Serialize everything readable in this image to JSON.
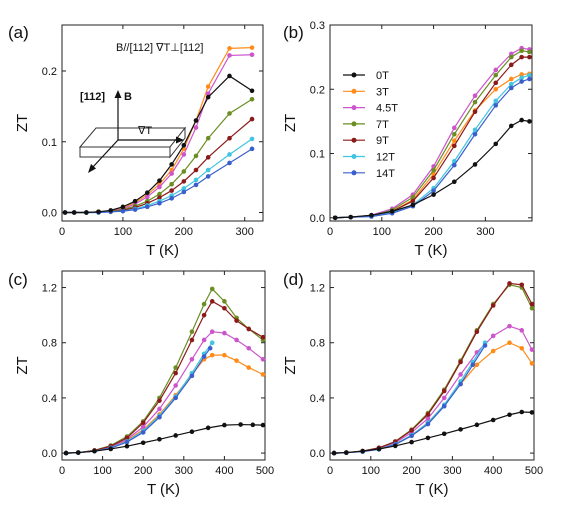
{
  "series_colors": {
    "0T": "#111111",
    "3T": "#ff8c1a",
    "4.5T": "#cc55cc",
    "7T": "#6b8e23",
    "9T": "#8b1a1a",
    "12T": "#40c4e0",
    "14T": "#3a5fcd"
  },
  "legend_order": [
    "0T",
    "3T",
    "4.5T",
    "7T",
    "9T",
    "12T",
    "14T"
  ],
  "chart_data": [
    {
      "panel": "(a)",
      "type": "line",
      "xlabel": "T (K)",
      "ylabel": "ZT",
      "xlim": [
        0,
        330
      ],
      "ylim": [
        -0.012,
        0.265
      ],
      "xticks": [
        0,
        100,
        200,
        300
      ],
      "yticks": [
        0.0,
        0.1,
        0.2
      ],
      "ytick_labels": [
        "0.0",
        "0.1",
        "0.2"
      ],
      "annotations": {
        "header": "B//[112]   ∇T⊥[112]",
        "axis_112": "[112]",
        "axis_B": "B",
        "axis_gradT": "∇T"
      },
      "series": [
        {
          "name": "0T",
          "x": [
            5,
            20,
            40,
            60,
            80,
            100,
            120,
            140,
            160,
            180,
            200,
            220,
            240,
            275,
            312
          ],
          "y": [
            0,
            0,
            0,
            0.001,
            0.003,
            0.008,
            0.016,
            0.028,
            0.045,
            0.068,
            0.095,
            0.13,
            0.163,
            0.193,
            0.172
          ]
        },
        {
          "name": "3T",
          "x": [
            5,
            20,
            40,
            60,
            80,
            100,
            120,
            140,
            160,
            180,
            200,
            220,
            240,
            275,
            312
          ],
          "y": [
            0,
            0,
            0,
            0.001,
            0.002,
            0.006,
            0.014,
            0.025,
            0.04,
            0.06,
            0.09,
            0.13,
            0.178,
            0.232,
            0.233
          ]
        },
        {
          "name": "4.5T",
          "x": [
            5,
            20,
            40,
            60,
            80,
            100,
            120,
            140,
            160,
            180,
            200,
            220,
            240,
            275,
            312
          ],
          "y": [
            0,
            0,
            0,
            0.001,
            0.002,
            0.005,
            0.012,
            0.022,
            0.036,
            0.055,
            0.082,
            0.12,
            0.168,
            0.222,
            0.223
          ]
        },
        {
          "name": "7T",
          "x": [
            5,
            20,
            40,
            60,
            80,
            100,
            120,
            140,
            160,
            180,
            200,
            220,
            240,
            275,
            312
          ],
          "y": [
            0,
            0,
            0,
            0.001,
            0.002,
            0.004,
            0.009,
            0.016,
            0.026,
            0.04,
            0.058,
            0.08,
            0.105,
            0.14,
            0.16
          ]
        },
        {
          "name": "9T",
          "x": [
            5,
            20,
            40,
            60,
            80,
            100,
            120,
            140,
            160,
            180,
            200,
            220,
            240,
            275,
            312
          ],
          "y": [
            0,
            0,
            0,
            0.001,
            0.001,
            0.003,
            0.007,
            0.013,
            0.021,
            0.031,
            0.044,
            0.06,
            0.078,
            0.105,
            0.132
          ]
        },
        {
          "name": "12T",
          "x": [
            5,
            20,
            40,
            60,
            80,
            100,
            120,
            140,
            160,
            180,
            200,
            220,
            240,
            275,
            312
          ],
          "y": [
            0,
            0,
            0,
            0,
            0.001,
            0.002,
            0.005,
            0.01,
            0.016,
            0.024,
            0.034,
            0.046,
            0.06,
            0.082,
            0.104
          ]
        },
        {
          "name": "14T",
          "x": [
            5,
            20,
            40,
            60,
            80,
            100,
            120,
            140,
            160,
            180,
            200,
            220,
            240,
            275,
            312
          ],
          "y": [
            0,
            0,
            0,
            0,
            0.001,
            0.002,
            0.004,
            0.008,
            0.013,
            0.02,
            0.029,
            0.039,
            0.051,
            0.07,
            0.09
          ]
        }
      ]
    },
    {
      "panel": "(b)",
      "type": "line",
      "xlabel": "T (K)",
      "ylabel": "ZT",
      "xlim": [
        0,
        390
      ],
      "ylim": [
        -0.005,
        0.3
      ],
      "xticks": [
        0,
        100,
        200,
        300
      ],
      "yticks": [
        0.0,
        0.1,
        0.2,
        0.3
      ],
      "ytick_labels": [
        "0.0",
        "0.1",
        "0.2",
        "0.3"
      ],
      "show_legend": true,
      "series": [
        {
          "name": "0T",
          "x": [
            10,
            40,
            80,
            120,
            160,
            200,
            240,
            280,
            320,
            350,
            370,
            385
          ],
          "y": [
            0,
            0.001,
            0.004,
            0.01,
            0.02,
            0.036,
            0.056,
            0.083,
            0.115,
            0.143,
            0.152,
            0.15
          ]
        },
        {
          "name": "3T",
          "x": [
            10,
            40,
            80,
            120,
            160,
            200,
            240,
            280,
            320,
            350,
            370,
            385
          ],
          "y": [
            0,
            0.001,
            0.003,
            0.01,
            0.028,
            0.068,
            0.12,
            0.167,
            0.2,
            0.216,
            0.223,
            0.224
          ]
        },
        {
          "name": "4.5T",
          "x": [
            10,
            40,
            80,
            120,
            160,
            200,
            240,
            280,
            320,
            350,
            370,
            385
          ],
          "y": [
            0,
            0.001,
            0.004,
            0.014,
            0.036,
            0.08,
            0.14,
            0.19,
            0.23,
            0.255,
            0.264,
            0.262
          ]
        },
        {
          "name": "7T",
          "x": [
            10,
            40,
            80,
            120,
            160,
            200,
            240,
            280,
            320,
            350,
            370,
            385
          ],
          "y": [
            0,
            0.001,
            0.003,
            0.012,
            0.032,
            0.074,
            0.13,
            0.18,
            0.222,
            0.25,
            0.26,
            0.258
          ]
        },
        {
          "name": "9T",
          "x": [
            10,
            40,
            80,
            120,
            160,
            200,
            240,
            280,
            320,
            350,
            370,
            385
          ],
          "y": [
            0,
            0.001,
            0.003,
            0.01,
            0.026,
            0.062,
            0.112,
            0.165,
            0.21,
            0.238,
            0.25,
            0.25
          ]
        },
        {
          "name": "12T",
          "x": [
            10,
            40,
            80,
            120,
            160,
            200,
            240,
            280,
            320,
            350,
            370,
            385
          ],
          "y": [
            0,
            0.001,
            0.002,
            0.008,
            0.02,
            0.046,
            0.088,
            0.137,
            0.182,
            0.208,
            0.218,
            0.222
          ]
        },
        {
          "name": "14T",
          "x": [
            10,
            40,
            80,
            120,
            160,
            200,
            240,
            280,
            320,
            350,
            370,
            385
          ],
          "y": [
            0,
            0.001,
            0.002,
            0.007,
            0.018,
            0.042,
            0.082,
            0.13,
            0.175,
            0.202,
            0.212,
            0.216
          ]
        }
      ]
    },
    {
      "panel": "(c)",
      "type": "line",
      "xlabel": "T (K)",
      "ylabel": "ZT",
      "xlim": [
        0,
        500
      ],
      "ylim": [
        -0.05,
        1.32
      ],
      "xticks": [
        0,
        100,
        200,
        300,
        400,
        500
      ],
      "yticks": [
        0.0,
        0.4,
        0.8,
        1.2
      ],
      "ytick_labels": [
        "0.0",
        "0.4",
        "0.8",
        "1.2"
      ],
      "series": [
        {
          "name": "0T",
          "x": [
            10,
            40,
            80,
            120,
            160,
            200,
            240,
            280,
            320,
            360,
            400,
            440,
            470,
            495
          ],
          "y": [
            0,
            0.004,
            0.014,
            0.03,
            0.05,
            0.075,
            0.1,
            0.128,
            0.155,
            0.183,
            0.203,
            0.207,
            0.205,
            0.203
          ]
        },
        {
          "name": "3T",
          "x": [
            10,
            40,
            80,
            120,
            160,
            200,
            240,
            280,
            320,
            350,
            370,
            400,
            430,
            460,
            495
          ],
          "y": [
            0,
            0.003,
            0.015,
            0.04,
            0.09,
            0.17,
            0.28,
            0.42,
            0.57,
            0.68,
            0.71,
            0.71,
            0.67,
            0.62,
            0.57
          ]
        },
        {
          "name": "4.5T",
          "x": [
            10,
            40,
            80,
            120,
            160,
            200,
            240,
            280,
            320,
            350,
            370,
            400,
            430,
            460,
            495
          ],
          "y": [
            0,
            0.003,
            0.017,
            0.045,
            0.1,
            0.19,
            0.32,
            0.49,
            0.68,
            0.82,
            0.88,
            0.87,
            0.82,
            0.76,
            0.68
          ]
        },
        {
          "name": "7T",
          "x": [
            10,
            40,
            80,
            120,
            160,
            200,
            240,
            280,
            320,
            350,
            370,
            400,
            430,
            460,
            495
          ],
          "y": [
            0,
            0.003,
            0.02,
            0.055,
            0.12,
            0.23,
            0.4,
            0.62,
            0.88,
            1.08,
            1.19,
            1.1,
            0.98,
            0.9,
            0.82
          ]
        },
        {
          "name": "9T",
          "x": [
            10,
            40,
            80,
            120,
            160,
            200,
            240,
            280,
            320,
            350,
            370,
            400,
            430,
            460,
            495
          ],
          "y": [
            0,
            0.003,
            0.019,
            0.05,
            0.11,
            0.22,
            0.38,
            0.58,
            0.82,
            1.0,
            1.1,
            1.05,
            0.96,
            0.9,
            0.84
          ]
        },
        {
          "name": "12T",
          "x": [
            10,
            40,
            80,
            120,
            160,
            200,
            240,
            280,
            320,
            350,
            370
          ],
          "y": [
            0,
            0.003,
            0.014,
            0.038,
            0.085,
            0.16,
            0.27,
            0.41,
            0.58,
            0.72,
            0.8
          ]
        },
        {
          "name": "14T",
          "x": [
            10,
            40,
            80,
            120,
            160,
            200,
            240,
            280,
            320,
            350,
            365
          ],
          "y": [
            0,
            0.003,
            0.014,
            0.036,
            0.08,
            0.15,
            0.26,
            0.4,
            0.56,
            0.7,
            0.76
          ]
        }
      ]
    },
    {
      "panel": "(d)",
      "type": "line",
      "xlabel": "T (K)",
      "ylabel": "ZT",
      "xlim": [
        0,
        500
      ],
      "ylim": [
        -0.05,
        1.32
      ],
      "xticks": [
        0,
        100,
        200,
        300,
        400,
        500
      ],
      "yticks": [
        0.0,
        0.4,
        0.8,
        1.2
      ],
      "ytick_labels": [
        "0.0",
        "0.4",
        "0.8",
        "1.2"
      ],
      "series": [
        {
          "name": "0T",
          "x": [
            10,
            40,
            80,
            120,
            160,
            200,
            240,
            280,
            320,
            360,
            400,
            440,
            470,
            495
          ],
          "y": [
            0,
            0.004,
            0.014,
            0.03,
            0.052,
            0.08,
            0.11,
            0.14,
            0.172,
            0.205,
            0.24,
            0.278,
            0.298,
            0.295
          ]
        },
        {
          "name": "3T",
          "x": [
            10,
            40,
            80,
            120,
            160,
            200,
            240,
            280,
            320,
            360,
            400,
            440,
            470,
            495
          ],
          "y": [
            0,
            0.003,
            0.012,
            0.03,
            0.065,
            0.13,
            0.22,
            0.35,
            0.5,
            0.64,
            0.74,
            0.8,
            0.76,
            0.65
          ]
        },
        {
          "name": "4.5T",
          "x": [
            10,
            40,
            80,
            120,
            160,
            200,
            240,
            280,
            320,
            360,
            400,
            440,
            470,
            495
          ],
          "y": [
            0,
            0.003,
            0.014,
            0.035,
            0.075,
            0.15,
            0.25,
            0.4,
            0.57,
            0.73,
            0.85,
            0.92,
            0.89,
            0.75
          ]
        },
        {
          "name": "7T",
          "x": [
            10,
            40,
            80,
            120,
            160,
            200,
            240,
            280,
            320,
            360,
            400,
            440,
            470,
            495
          ],
          "y": [
            0,
            0.003,
            0.015,
            0.038,
            0.085,
            0.17,
            0.29,
            0.46,
            0.67,
            0.89,
            1.08,
            1.22,
            1.2,
            1.05
          ]
        },
        {
          "name": "9T",
          "x": [
            10,
            40,
            80,
            120,
            160,
            200,
            240,
            280,
            320,
            360,
            400,
            440,
            470,
            495
          ],
          "y": [
            0,
            0.003,
            0.015,
            0.038,
            0.083,
            0.165,
            0.28,
            0.45,
            0.66,
            0.88,
            1.07,
            1.23,
            1.22,
            1.08
          ]
        },
        {
          "name": "12T",
          "x": [
            10,
            40,
            80,
            120,
            160,
            200,
            240,
            280,
            320,
            350,
            380
          ],
          "y": [
            0,
            0.003,
            0.011,
            0.028,
            0.065,
            0.13,
            0.22,
            0.35,
            0.52,
            0.66,
            0.8
          ]
        },
        {
          "name": "14T",
          "x": [
            10,
            40,
            80,
            120,
            160,
            200,
            240,
            280,
            320,
            350,
            380
          ],
          "y": [
            0,
            0.003,
            0.011,
            0.027,
            0.062,
            0.125,
            0.21,
            0.34,
            0.5,
            0.64,
            0.78
          ]
        }
      ]
    }
  ]
}
